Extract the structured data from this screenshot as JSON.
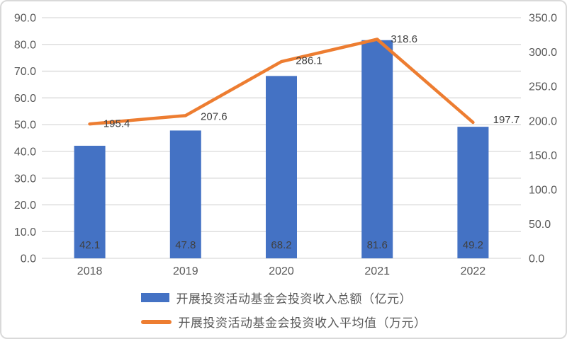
{
  "window": {
    "background": "#ffffff",
    "border_color": "#d9d9d9"
  },
  "chart_data": {
    "type": "combo",
    "categories": [
      "2018",
      "2019",
      "2020",
      "2021",
      "2022"
    ],
    "series": [
      {
        "name": "开展投资活动基金会投资收入总额（亿元）",
        "type": "bar",
        "axis": "left",
        "color": "#4472C4",
        "values": [
          42.1,
          47.8,
          68.2,
          81.6,
          49.2
        ],
        "labels": [
          "42.1",
          "47.8",
          "68.2",
          "81.6",
          "49.2"
        ]
      },
      {
        "name": "开展投资活动基金会投资收入平均值（万元）",
        "type": "line",
        "axis": "right",
        "color": "#ED7D31",
        "values": [
          195.4,
          207.6,
          286.1,
          318.6,
          197.7
        ],
        "labels": [
          "195.4",
          "207.6",
          "286.1",
          "318.6",
          "197.7"
        ]
      }
    ],
    "left_axis": {
      "min": 0,
      "max": 90,
      "step": 10,
      "ticks": [
        "0.0",
        "10.0",
        "20.0",
        "30.0",
        "40.0",
        "50.0",
        "60.0",
        "70.0",
        "80.0",
        "90.0"
      ]
    },
    "right_axis": {
      "min": 0,
      "max": 350,
      "step": 50,
      "ticks": [
        "0.0",
        "50.0",
        "100.0",
        "150.0",
        "200.0",
        "250.0",
        "300.0",
        "350.0"
      ]
    },
    "grid": true,
    "legend_position": "bottom",
    "colors": {
      "grid": "#d9d9d9",
      "tick_text": "#595959",
      "data_label_text": "#404040"
    }
  },
  "legend": {
    "items": [
      {
        "label": "开展投资活动基金会投资收入总额（亿元）",
        "swatch": "bar-swatch",
        "color": "#4472C4"
      },
      {
        "label": "开展投资活动基金会投资收入平均值（万元）",
        "swatch": "line-swatch",
        "color": "#ED7D31"
      }
    ]
  }
}
